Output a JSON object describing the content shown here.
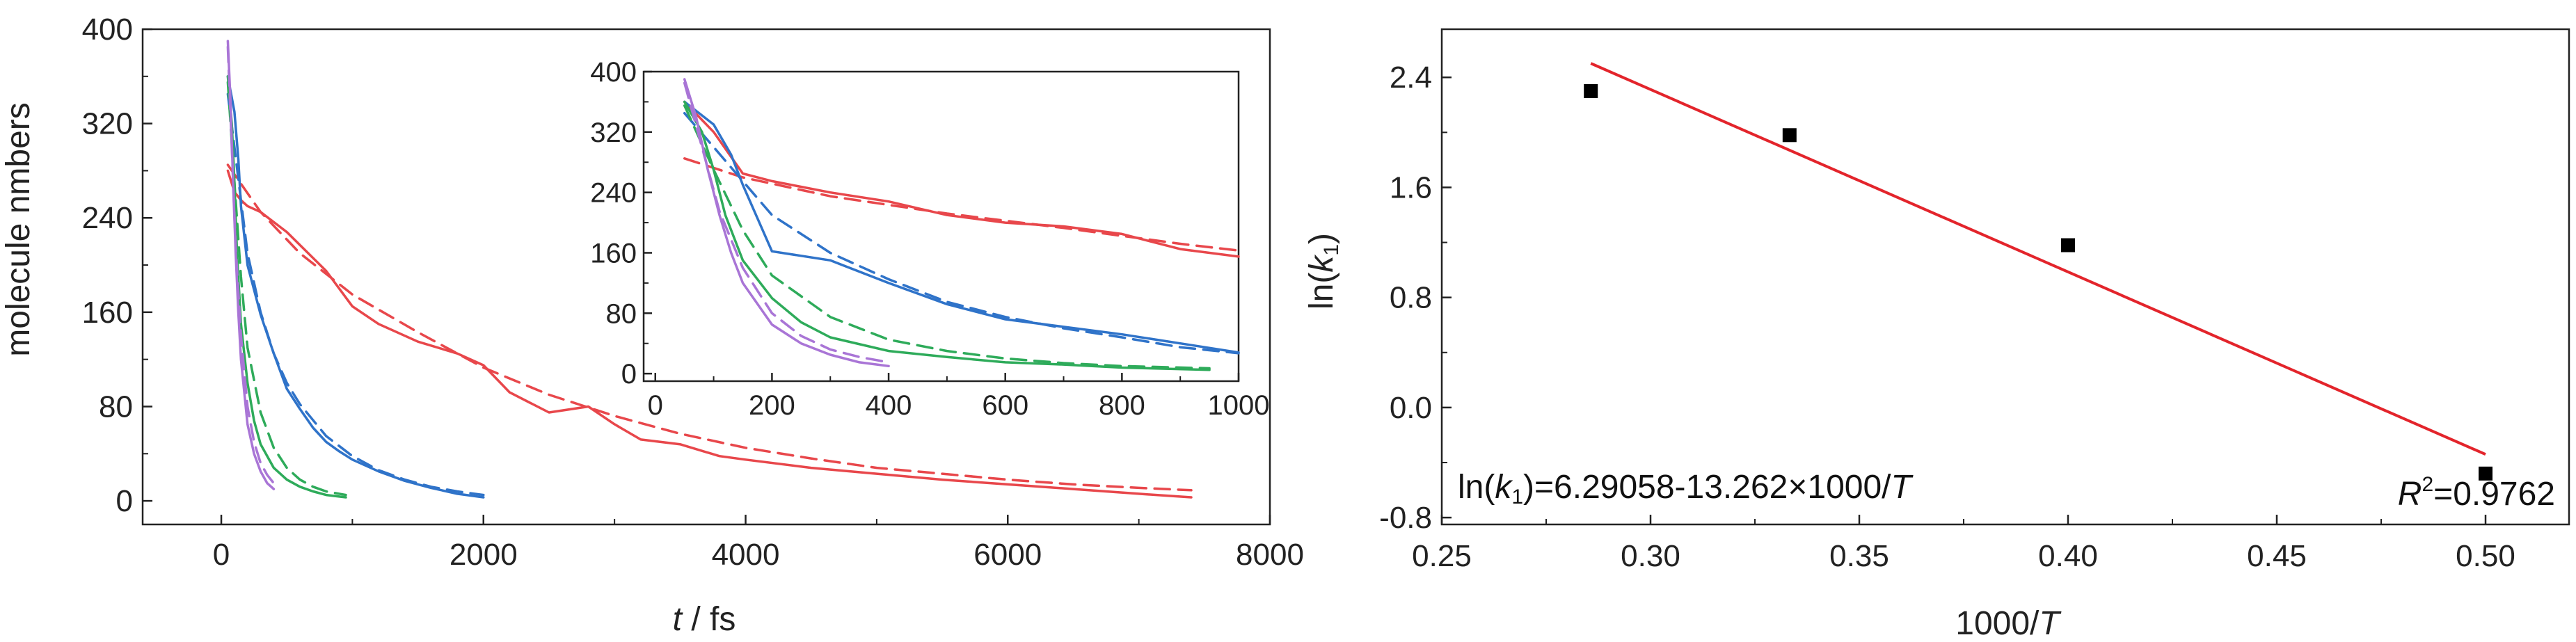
{
  "chart_data": [
    {
      "type": "line",
      "xlabel_var": "t",
      "xlabel_unit": " / fs",
      "ylabel": "molecule nmbers",
      "xlim": [
        -600,
        8000
      ],
      "ylim": [
        -20,
        400
      ],
      "xticks": [
        "0",
        "2000",
        "4000",
        "6000",
        "8000"
      ],
      "yticks": [
        "0",
        "80",
        "160",
        "240",
        "320",
        "400"
      ],
      "legend": "none",
      "grid": false,
      "series": [
        {
          "color": "#e8474b",
          "style": "solid",
          "x": [
            50,
            100,
            150,
            200,
            300,
            500,
            800,
            1000,
            1200,
            1500,
            1800,
            2000,
            2200,
            2500,
            2800,
            3000,
            3200,
            3500,
            3800,
            4000,
            4500,
            5000,
            5500,
            6000,
            6500,
            7000,
            7400
          ],
          "y": [
            280,
            262,
            255,
            250,
            245,
            228,
            195,
            165,
            150,
            135,
            125,
            115,
            92,
            75,
            80,
            65,
            52,
            48,
            38,
            35,
            28,
            23,
            18,
            14,
            10,
            6,
            3
          ]
        },
        {
          "color": "#e8474b",
          "style": "dashed",
          "x": [
            50,
            300,
            600,
            1000,
            1500,
            2000,
            2500,
            3000,
            3500,
            4000,
            4500,
            5000,
            5500,
            6000,
            6500,
            7000,
            7400
          ],
          "y": [
            285,
            245,
            210,
            175,
            143,
            113,
            90,
            72,
            57,
            45,
            36,
            28,
            23,
            18,
            14,
            11,
            9
          ]
        },
        {
          "color": "#2f73c9",
          "style": "solid",
          "x": [
            50,
            100,
            130,
            150,
            200,
            300,
            400,
            500,
            600,
            700,
            800,
            900,
            1000,
            1200,
            1400,
            1600,
            1800,
            2000
          ],
          "y": [
            360,
            330,
            290,
            250,
            200,
            158,
            125,
            95,
            78,
            62,
            50,
            42,
            35,
            25,
            17,
            11,
            6,
            3
          ]
        },
        {
          "color": "#2f73c9",
          "style": "dashed",
          "x": [
            50,
            100,
            150,
            200,
            300,
            400,
            500,
            600,
            800,
            1000,
            1200,
            1400,
            1600,
            1800,
            2000
          ],
          "y": [
            345,
            300,
            255,
            210,
            160,
            125,
            100,
            82,
            55,
            38,
            26,
            18,
            12,
            8,
            5
          ]
        },
        {
          "color": "#2eab5a",
          "style": "solid",
          "x": [
            50,
            80,
            100,
            120,
            150,
            200,
            250,
            300,
            400,
            500,
            600,
            700,
            800,
            950
          ],
          "y": [
            360,
            320,
            270,
            210,
            150,
            100,
            68,
            48,
            28,
            18,
            12,
            8,
            5,
            3
          ]
        },
        {
          "color": "#2eab5a",
          "style": "dashed",
          "x": [
            50,
            100,
            150,
            200,
            300,
            400,
            500,
            600,
            700,
            800,
            950
          ],
          "y": [
            355,
            270,
            190,
            130,
            75,
            45,
            28,
            18,
            12,
            8,
            5
          ]
        },
        {
          "color": "#a975d6",
          "style": "solid",
          "x": [
            50,
            70,
            90,
            110,
            130,
            150,
            200,
            250,
            300,
            350,
            400
          ],
          "y": [
            390,
            340,
            270,
            210,
            160,
            120,
            65,
            40,
            25,
            15,
            10
          ]
        },
        {
          "color": "#a975d6",
          "style": "dashed",
          "x": [
            50,
            80,
            110,
            150,
            200,
            250,
            300,
            350,
            400
          ],
          "y": [
            385,
            300,
            215,
            140,
            80,
            50,
            32,
            22,
            15
          ]
        }
      ]
    },
    {
      "type": "line",
      "inset": true,
      "xlim": [
        -20,
        1000
      ],
      "ylim": [
        -10,
        400
      ],
      "xticks": [
        "0",
        "200",
        "400",
        "600",
        "800",
        "1000"
      ],
      "yticks": [
        "0",
        "80",
        "160",
        "240",
        "320",
        "400"
      ],
      "series": [
        {
          "color": "#e8474b",
          "style": "solid",
          "x": [
            50,
            100,
            150,
            200,
            300,
            400,
            500,
            600,
            700,
            800,
            900,
            1000
          ],
          "y": [
            360,
            320,
            265,
            255,
            240,
            228,
            210,
            200,
            195,
            185,
            165,
            155
          ]
        },
        {
          "color": "#e8474b",
          "style": "dashed",
          "x": [
            50,
            150,
            300,
            500,
            700,
            900,
            1000
          ],
          "y": [
            285,
            260,
            235,
            212,
            193,
            172,
            163
          ]
        },
        {
          "color": "#2f73c9",
          "style": "solid",
          "x": [
            50,
            100,
            130,
            150,
            200,
            300,
            400,
            500,
            600,
            700,
            800,
            900,
            1000
          ],
          "y": [
            360,
            330,
            290,
            250,
            162,
            150,
            120,
            92,
            72,
            62,
            52,
            40,
            28
          ]
        },
        {
          "color": "#2f73c9",
          "style": "dashed",
          "x": [
            50,
            100,
            150,
            200,
            300,
            400,
            500,
            600,
            700,
            800,
            900,
            1000
          ],
          "y": [
            345,
            300,
            255,
            210,
            160,
            125,
            95,
            75,
            60,
            48,
            35,
            27
          ]
        },
        {
          "color": "#2eab5a",
          "style": "solid",
          "x": [
            50,
            80,
            100,
            120,
            150,
            200,
            250,
            300,
            400,
            500,
            600,
            700,
            800,
            950
          ],
          "y": [
            360,
            320,
            270,
            210,
            150,
            100,
            68,
            48,
            30,
            22,
            15,
            12,
            8,
            5
          ]
        },
        {
          "color": "#2eab5a",
          "style": "dashed",
          "x": [
            50,
            100,
            150,
            200,
            300,
            400,
            500,
            600,
            700,
            800,
            950
          ],
          "y": [
            355,
            270,
            190,
            130,
            75,
            45,
            30,
            20,
            14,
            10,
            7
          ]
        },
        {
          "color": "#a975d6",
          "style": "solid",
          "x": [
            50,
            70,
            90,
            110,
            130,
            150,
            200,
            250,
            300,
            350,
            400
          ],
          "y": [
            390,
            340,
            270,
            210,
            160,
            120,
            65,
            40,
            25,
            15,
            10
          ]
        },
        {
          "color": "#a975d6",
          "style": "dashed",
          "x": [
            50,
            80,
            110,
            150,
            200,
            250,
            300,
            350,
            400
          ],
          "y": [
            385,
            300,
            215,
            140,
            80,
            50,
            32,
            22,
            15
          ]
        }
      ]
    },
    {
      "type": "scatter",
      "xlabel_main": "1000/",
      "xlabel_var": "T",
      "ylabel_main": "ln(",
      "ylabel_var": "k",
      "ylabel_sub": "1",
      "ylabel_close": ")",
      "xlim": [
        0.25,
        0.52
      ],
      "ylim": [
        -0.85,
        2.75
      ],
      "xticks": [
        "0.25",
        "0.30",
        "0.35",
        "0.40",
        "0.45",
        "0.50"
      ],
      "yticks": [
        "-0.8",
        "0.0",
        "0.8",
        "1.6",
        "2.4"
      ],
      "points": {
        "color": "#000000",
        "x": [
          0.2857,
          0.3333,
          0.4,
          0.5
        ],
        "y": [
          2.3,
          1.98,
          1.18,
          -0.48
        ]
      },
      "fit_line": {
        "color": "#e3242b",
        "slope": -13.262,
        "intercept": 6.29058,
        "x_range": [
          0.2857,
          0.5
        ]
      },
      "equation": {
        "pre": "ln(",
        "var": "k",
        "sub": "1",
        "post": ")=6.29058-13.262×1000/",
        "var2": "T"
      },
      "r2": {
        "var": "R",
        "sup": "2",
        "value": "=0.9762"
      }
    }
  ]
}
